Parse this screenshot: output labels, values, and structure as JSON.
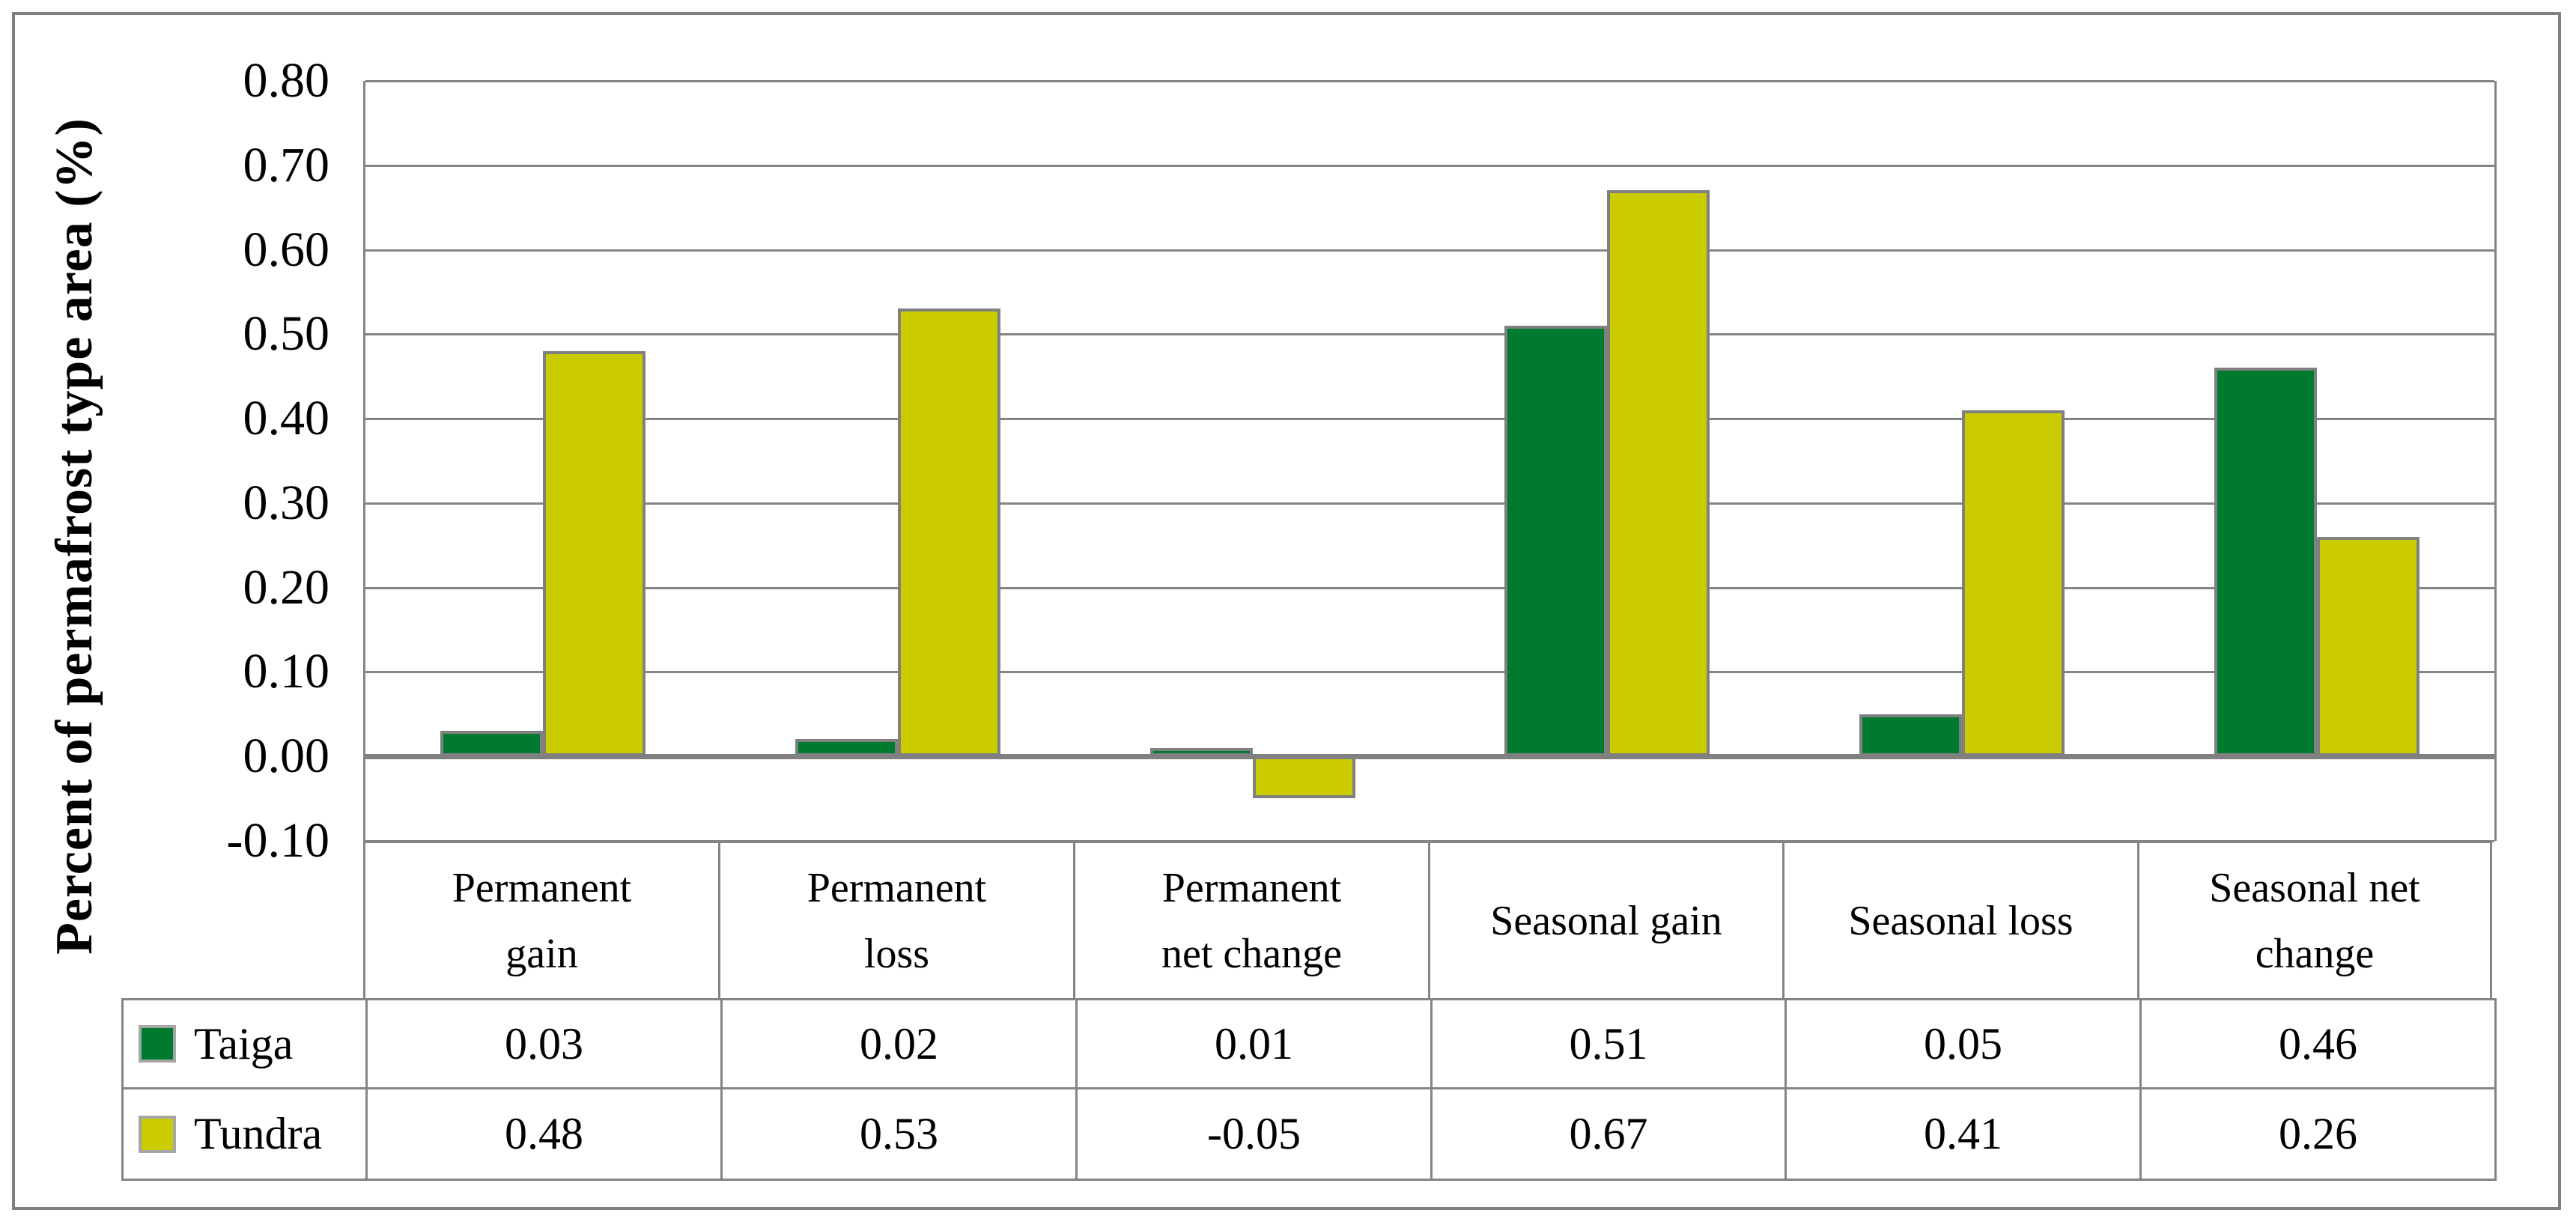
{
  "chart_data": {
    "type": "bar",
    "title": "",
    "xlabel": "",
    "ylabel": "Percent of permafrost type area (%)",
    "ylim": [
      -0.1,
      0.8
    ],
    "ytick_step": 0.1,
    "yticks": [
      "0.80",
      "0.70",
      "0.60",
      "0.50",
      "0.40",
      "0.30",
      "0.20",
      "0.10",
      "0.00",
      "-0.10"
    ],
    "grid": true,
    "legend_position": "data-table-left",
    "data_table_shown": true,
    "categories": [
      "Permanent gain",
      "Permanent loss",
      "Permanent net change",
      "Seasonal gain",
      "Seasonal loss",
      "Seasonal net change"
    ],
    "category_lines": [
      [
        "Permanent",
        "gain"
      ],
      [
        "Permanent",
        "loss"
      ],
      [
        "Permanent",
        "net change"
      ],
      [
        "Seasonal gain"
      ],
      [
        "Seasonal loss"
      ],
      [
        "Seasonal net",
        "change"
      ]
    ],
    "series": [
      {
        "name": "Taiga",
        "color": "#007a2f",
        "values": [
          0.03,
          0.02,
          0.01,
          0.51,
          0.05,
          0.46
        ]
      },
      {
        "name": "Tundra",
        "color": "#cbcc00",
        "values": [
          0.48,
          0.53,
          -0.05,
          0.67,
          0.41,
          0.26
        ]
      }
    ]
  },
  "styles": {
    "grid_color": "#848484",
    "axis_line_color": "#808080",
    "bar_border_color": "#808080",
    "frame_border_color": "#808080",
    "swatch_border_color": "#a6a6a6",
    "text_color": "#000000",
    "background": "#ffffff"
  }
}
